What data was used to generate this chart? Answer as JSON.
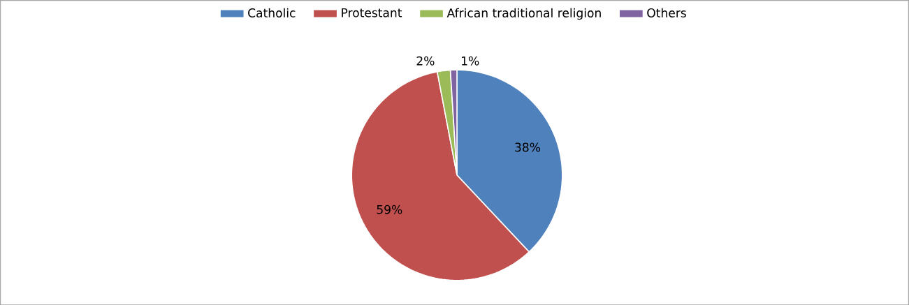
{
  "chart_data": {
    "type": "pie",
    "categories": [
      "Catholic",
      "Protestant",
      "African traditional religion",
      "Others"
    ],
    "values": [
      38,
      59,
      2,
      1
    ],
    "value_labels": [
      "38%",
      "59%",
      "2%",
      "1%"
    ],
    "colors": [
      "#4f81bd",
      "#c0504d",
      "#9bbb59",
      "#8064a2"
    ],
    "legend": "top"
  }
}
